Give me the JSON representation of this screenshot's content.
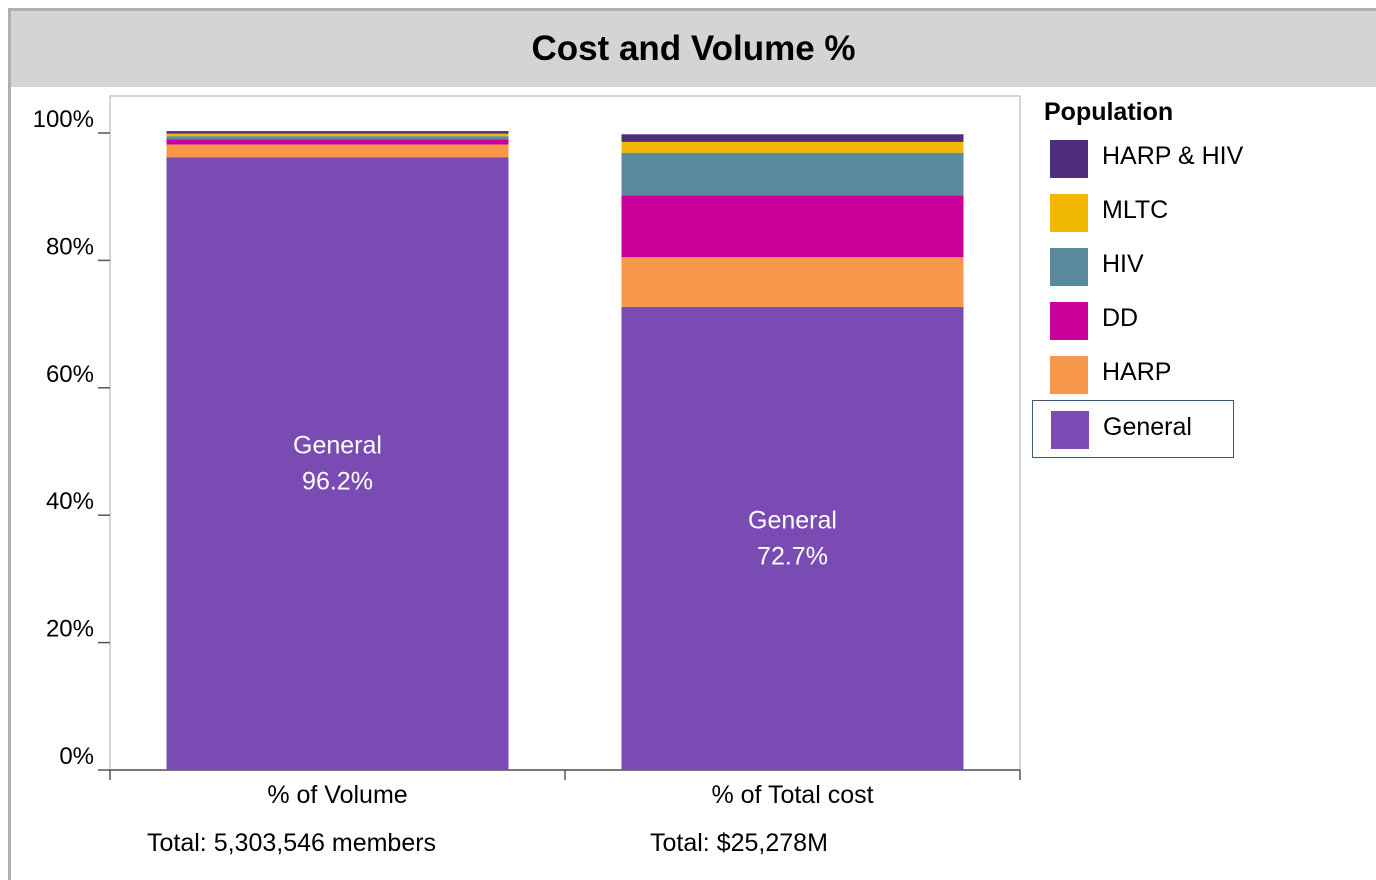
{
  "title": "Cost and Volume %",
  "legend": {
    "title": "Population",
    "items": [
      {
        "label": "HARP & HIV",
        "color": "#4e2e7a"
      },
      {
        "label": "MLTC",
        "color": "#f1b800"
      },
      {
        "label": "HIV",
        "color": "#5b8a9e"
      },
      {
        "label": "DD",
        "color": "#c9009a"
      },
      {
        "label": "HARP",
        "color": "#f7974a"
      },
      {
        "label": "General",
        "color": "#7a4cb3"
      }
    ],
    "selected": "General"
  },
  "totals": {
    "volume": "Total: 5,303,546 members",
    "cost": "Total: $25,278M"
  },
  "chart_data": {
    "type": "bar",
    "stacked": true,
    "categories": [
      "% of Volume",
      "% of Total cost"
    ],
    "y_ticks": [
      "0%",
      "20%",
      "40%",
      "60%",
      "80%",
      "100%"
    ],
    "ylim": [
      0,
      100
    ],
    "series": [
      {
        "name": "General",
        "color": "#7a4cb3",
        "values": [
          96.2,
          72.7
        ]
      },
      {
        "name": "HARP",
        "color": "#f7974a",
        "values": [
          2.0,
          7.8
        ]
      },
      {
        "name": "DD",
        "color": "#c9009a",
        "values": [
          0.8,
          9.7
        ]
      },
      {
        "name": "HIV",
        "color": "#5b8a9e",
        "values": [
          0.5,
          6.7
        ]
      },
      {
        "name": "MLTC",
        "color": "#f1b800",
        "values": [
          0.4,
          1.7
        ]
      },
      {
        "name": "HARP & HIV",
        "color": "#4e2e7a",
        "values": [
          0.4,
          1.2
        ]
      }
    ],
    "data_labels": [
      {
        "category": "% of Volume",
        "series": "General",
        "lines": [
          "General",
          "96.2%"
        ]
      },
      {
        "category": "% of Total cost",
        "series": "General",
        "lines": [
          "General",
          "72.7%"
        ]
      }
    ]
  }
}
